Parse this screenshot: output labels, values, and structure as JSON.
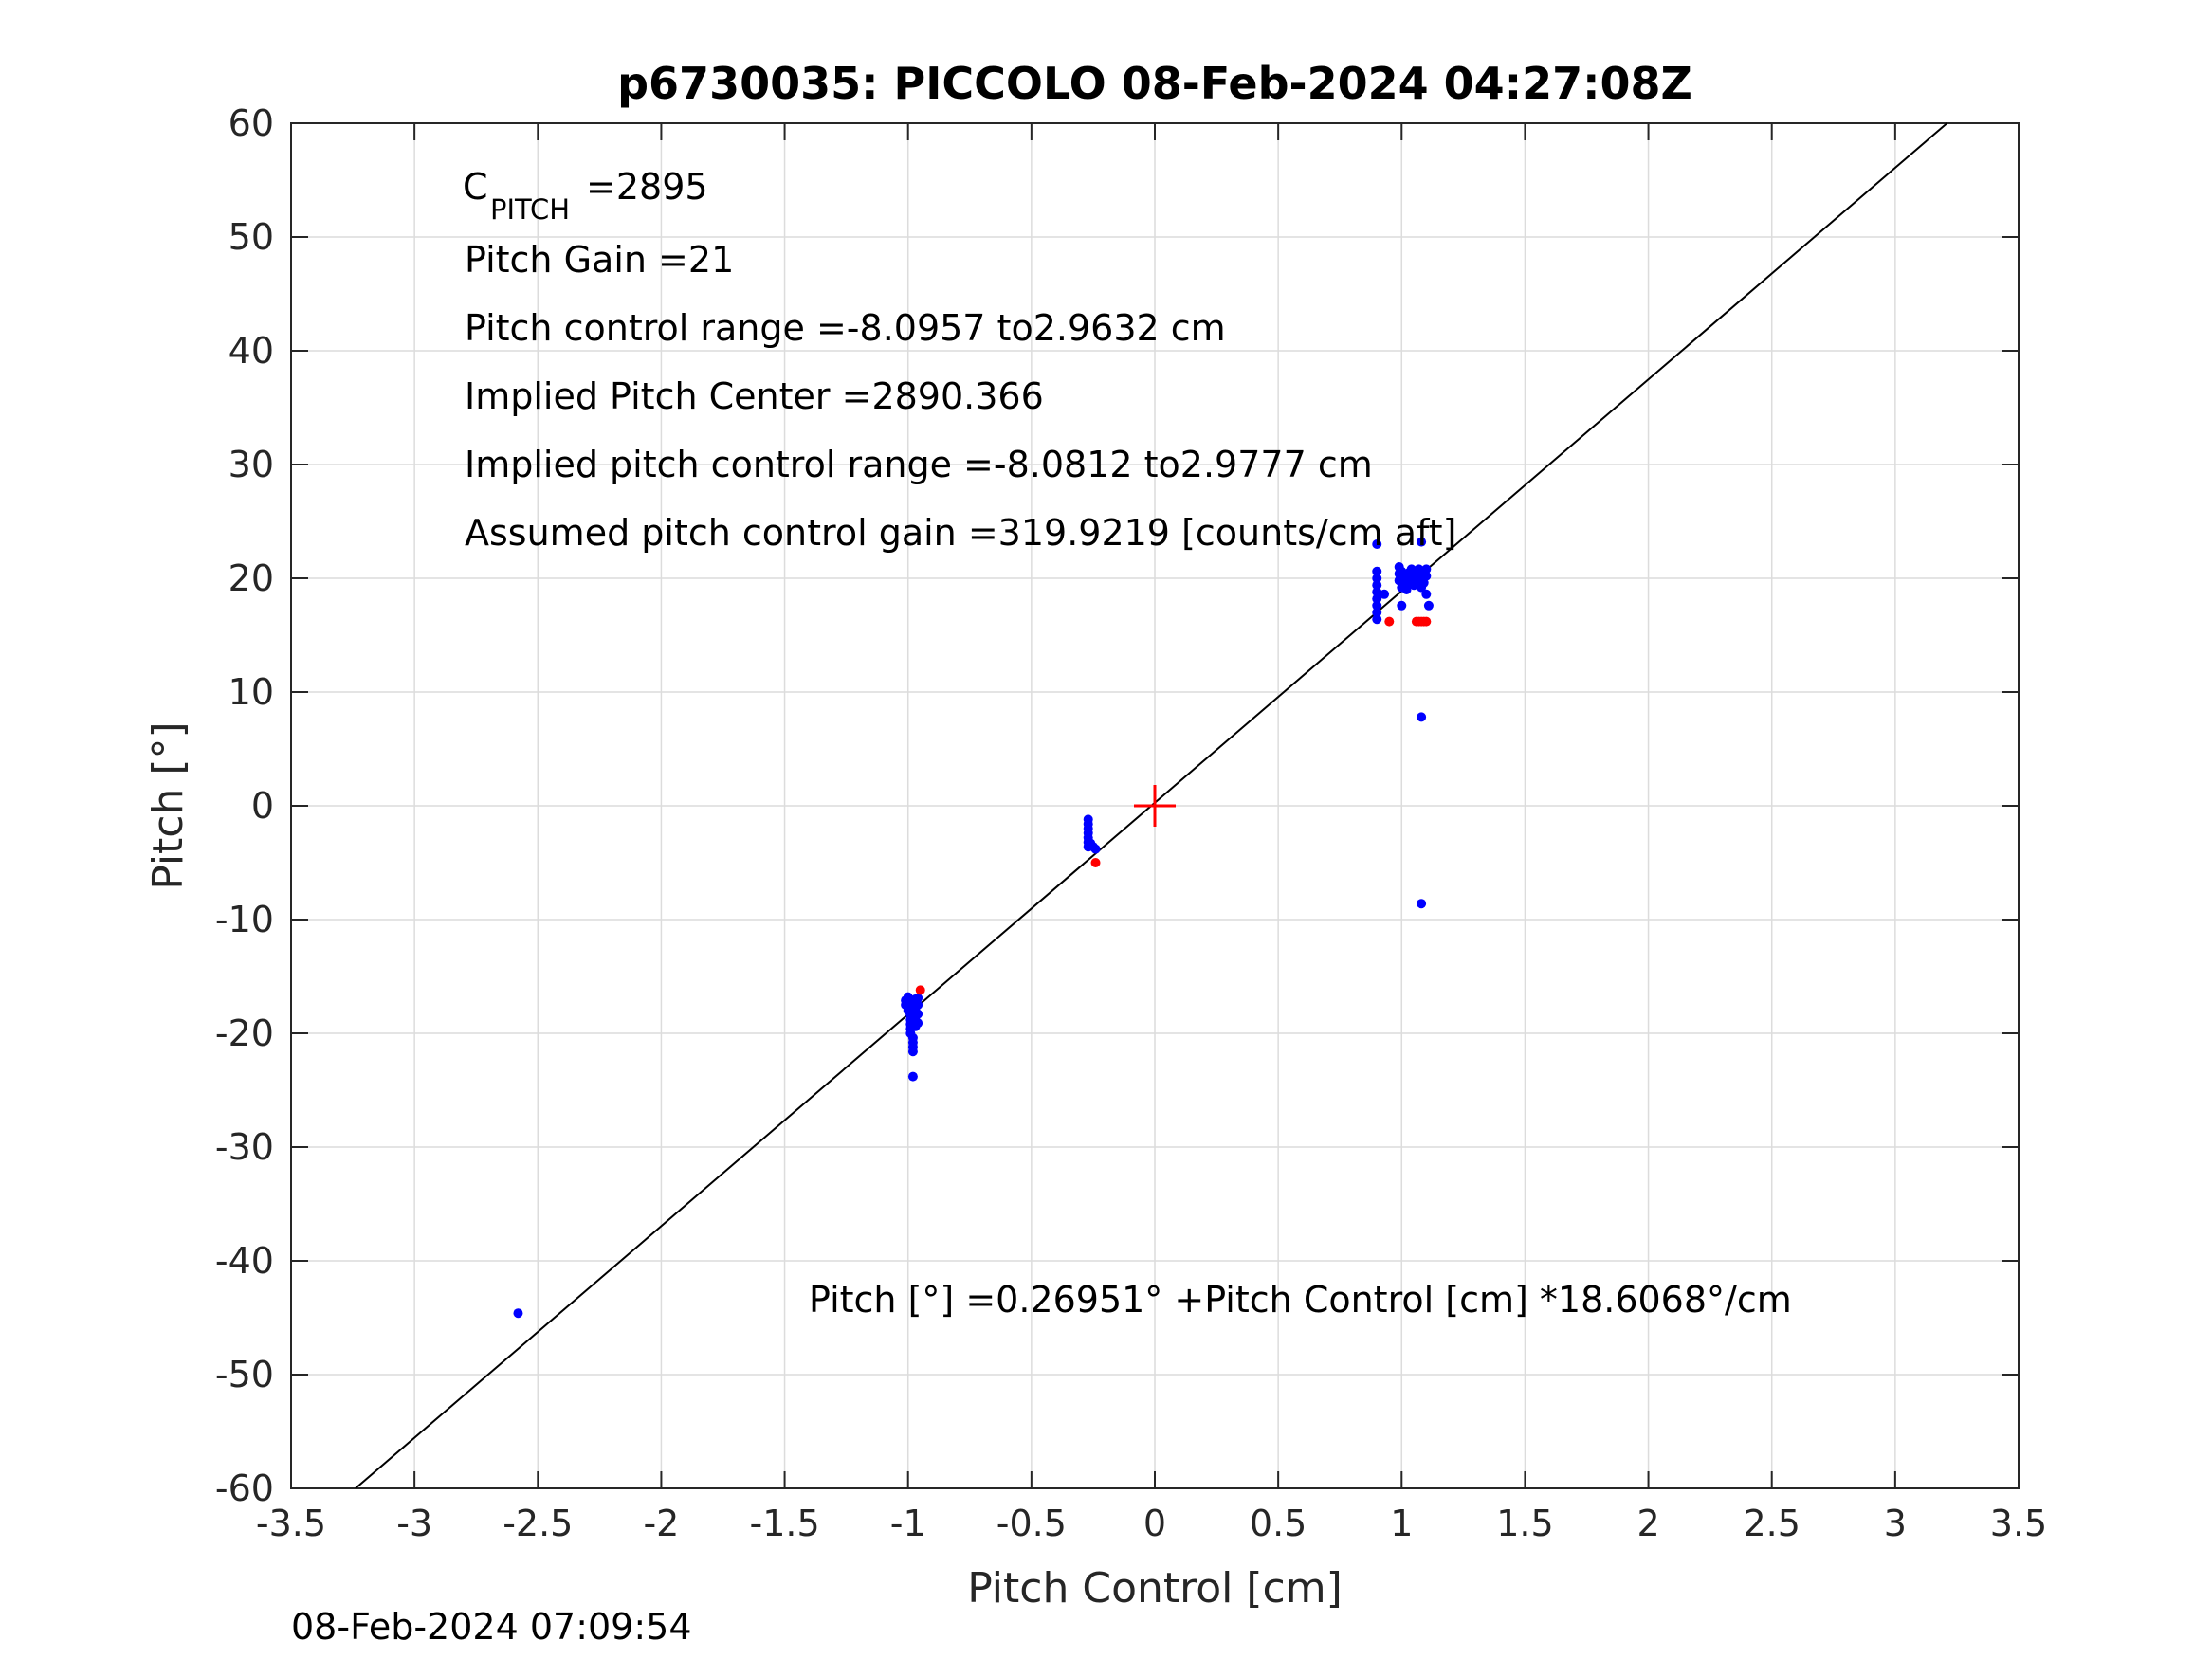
{
  "chart_data": {
    "type": "scatter",
    "title": "p6730035: PICCOLO 08-Feb-2024 04:27:08Z",
    "xlabel": "Pitch Control [cm]",
    "ylabel": "Pitch [°]",
    "xlim": [
      -3.5,
      3.5
    ],
    "ylim": [
      -60,
      60
    ],
    "xticks": [
      -3.5,
      -3,
      -2.5,
      -2,
      -1.5,
      -1,
      -0.5,
      0,
      0.5,
      1,
      1.5,
      2,
      2.5,
      3,
      3.5
    ],
    "xtick_labels": [
      "-3.5",
      "-3",
      "-2.5",
      "-2",
      "-1.5",
      "-1",
      "-0.5",
      "0",
      "0.5",
      "1",
      "1.5",
      "2",
      "2.5",
      "3",
      "3.5"
    ],
    "yticks": [
      60,
      50,
      40,
      30,
      20,
      10,
      0,
      -10,
      -20,
      -30,
      -40,
      -50,
      -60
    ],
    "ytick_labels": [
      "60",
      "50",
      "40",
      "30",
      "20",
      "10",
      "0",
      "-10",
      "-20",
      "-30",
      "-40",
      "-50",
      "-60"
    ],
    "grid": true,
    "colors": {
      "blue": "#0000ff",
      "red": "#ff0000",
      "fit": "#000000",
      "grid": "#dcdcdc",
      "axes": "#262626"
    },
    "fit_line": {
      "intercept": 0.26951,
      "slope": 18.6068
    },
    "center_marker": {
      "x": 0,
      "y": 0,
      "color": "red",
      "shape": "plus"
    },
    "annotations": {
      "c_pitch_label": "C",
      "c_pitch_sub": "PITCH",
      "c_pitch_value": " =2895",
      "pitch_gain": "Pitch Gain =21",
      "pitch_control_range": "Pitch control range =-8.0957 to2.9632 cm",
      "implied_pitch_center": "Implied Pitch Center =2890.366",
      "implied_pitch_control_range": "Implied pitch control range =-8.0812 to2.9777 cm",
      "assumed_gain": "Assumed pitch control gain =319.9219 [counts/cm aft]",
      "fit_equation": "Pitch [°] =0.26951° +Pitch Control [cm] *18.6068°/cm"
    },
    "footer_timestamp": "08-Feb-2024 07:09:54",
    "series": [
      {
        "color": "blue",
        "points": [
          [
            -2.58,
            -44.6
          ],
          [
            -1.0,
            -16.8
          ],
          [
            -1.0,
            -17.2
          ],
          [
            -1.0,
            -17.6
          ],
          [
            -1.0,
            -18.0
          ],
          [
            -0.99,
            -18.4
          ],
          [
            -0.99,
            -18.8
          ],
          [
            -0.99,
            -19.2
          ],
          [
            -0.99,
            -19.6
          ],
          [
            -0.99,
            -20.0
          ],
          [
            -0.98,
            -20.4
          ],
          [
            -0.98,
            -20.8
          ],
          [
            -0.98,
            -21.2
          ],
          [
            -0.98,
            -21.6
          ],
          [
            -0.97,
            -17.0
          ],
          [
            -0.97,
            -17.4
          ],
          [
            -0.97,
            -17.8
          ],
          [
            -0.97,
            -18.2
          ],
          [
            -0.97,
            -18.6
          ],
          [
            -0.97,
            -19.0
          ],
          [
            -0.97,
            -19.4
          ],
          [
            -0.96,
            -16.9
          ],
          [
            -0.96,
            -17.5
          ],
          [
            -0.96,
            -18.3
          ],
          [
            -0.96,
            -19.1
          ],
          [
            -0.98,
            -23.8
          ],
          [
            -1.01,
            -17.1
          ],
          [
            -1.01,
            -17.5
          ],
          [
            -0.27,
            -1.2
          ],
          [
            -0.27,
            -1.6
          ],
          [
            -0.27,
            -2.0
          ],
          [
            -0.27,
            -2.4
          ],
          [
            -0.27,
            -2.8
          ],
          [
            -0.27,
            -3.2
          ],
          [
            -0.27,
            -3.6
          ],
          [
            -0.26,
            -3.3
          ],
          [
            -0.25,
            -3.6
          ],
          [
            -0.24,
            -3.8
          ],
          [
            0.9,
            20.6
          ],
          [
            0.9,
            20.0
          ],
          [
            0.9,
            19.4
          ],
          [
            0.9,
            18.8
          ],
          [
            0.9,
            18.2
          ],
          [
            0.9,
            17.6
          ],
          [
            0.9,
            17.0
          ],
          [
            0.9,
            16.4
          ],
          [
            0.9,
            23.0
          ],
          [
            0.93,
            18.6
          ],
          [
            0.99,
            21.0
          ],
          [
            0.99,
            20.4
          ],
          [
            0.99,
            19.8
          ],
          [
            1.0,
            19.2
          ],
          [
            1.0,
            20.6
          ],
          [
            1.01,
            19.6
          ],
          [
            1.02,
            20.2
          ],
          [
            1.02,
            19.0
          ],
          [
            1.03,
            20.5
          ],
          [
            1.03,
            19.7
          ],
          [
            1.04,
            20.8
          ],
          [
            1.04,
            20.0
          ],
          [
            1.05,
            19.4
          ],
          [
            1.05,
            20.6
          ],
          [
            1.06,
            20.2
          ],
          [
            1.06,
            19.6
          ],
          [
            1.07,
            20.8
          ],
          [
            1.07,
            19.8
          ],
          [
            1.08,
            20.4
          ],
          [
            1.08,
            19.2
          ],
          [
            1.08,
            23.2
          ],
          [
            1.09,
            20.6
          ],
          [
            1.09,
            19.6
          ],
          [
            1.1,
            20.2
          ],
          [
            1.1,
            20.8
          ],
          [
            1.1,
            18.6
          ],
          [
            1.0,
            17.6
          ],
          [
            1.11,
            17.6
          ],
          [
            1.08,
            7.8
          ],
          [
            1.08,
            -8.6
          ]
        ]
      },
      {
        "color": "red",
        "points": [
          [
            -0.95,
            -16.2
          ],
          [
            -0.24,
            -5.0
          ],
          [
            0.95,
            16.2
          ],
          [
            1.06,
            16.2
          ],
          [
            1.07,
            16.2
          ],
          [
            1.08,
            16.2
          ],
          [
            1.09,
            16.2
          ],
          [
            1.1,
            16.2
          ]
        ]
      }
    ]
  }
}
